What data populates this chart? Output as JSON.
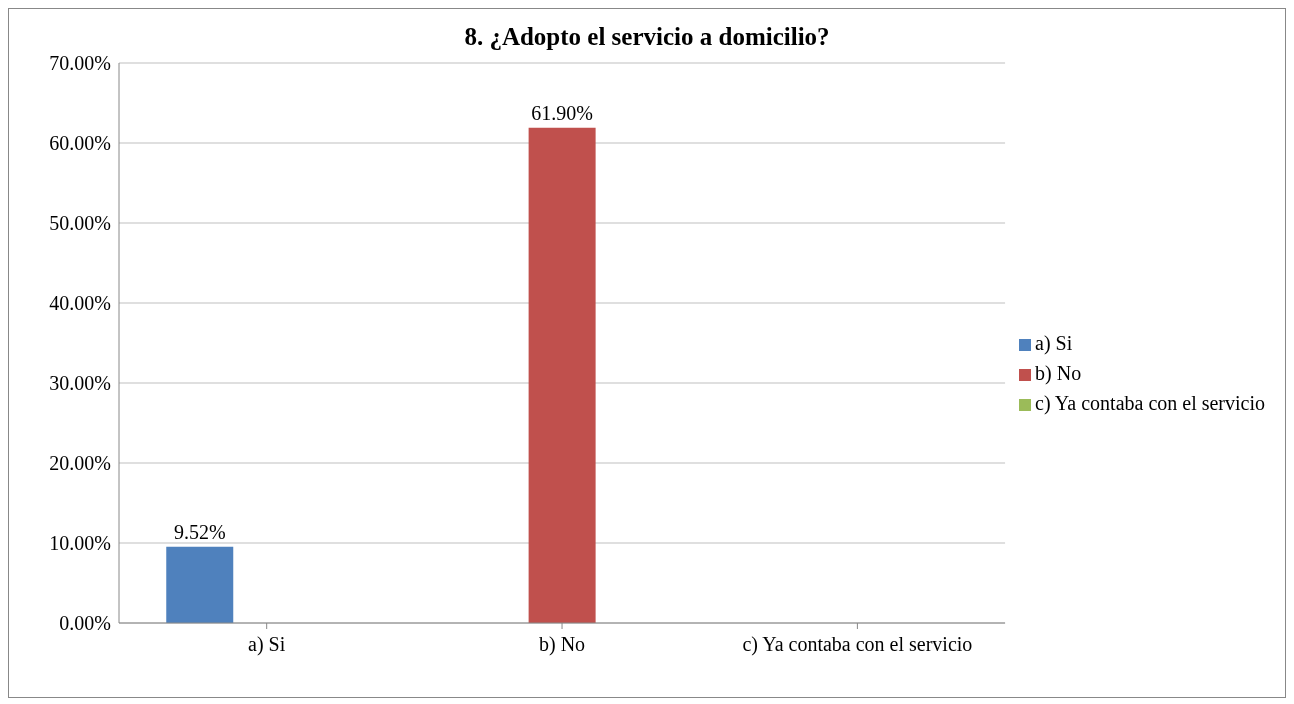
{
  "chart_data": {
    "type": "bar",
    "title": "8. ¿Adopto el servicio a domicilio?",
    "categories": [
      "a) Si",
      "b) No",
      "c) Ya contaba con el servicio"
    ],
    "series": [
      {
        "name": "a) Si",
        "color": "#4f81bd",
        "values": [
          9.52,
          null,
          null
        ],
        "value_labels": [
          "9.52%",
          null,
          null
        ]
      },
      {
        "name": "b) No",
        "color": "#c0504d",
        "values": [
          null,
          61.9,
          null
        ],
        "value_labels": [
          null,
          "61.90%",
          null
        ]
      },
      {
        "name": "c) Ya contaba con el servicio",
        "color": "#9bbb59",
        "values": [
          null,
          null,
          null
        ]
      }
    ],
    "ylim": [
      0,
      70
    ],
    "yticks": [
      {
        "value": 0,
        "label": "0.00%"
      },
      {
        "value": 10,
        "label": "10.00%"
      },
      {
        "value": 20,
        "label": "20.00%"
      },
      {
        "value": 30,
        "label": "30.00%"
      },
      {
        "value": 40,
        "label": "40.00%"
      },
      {
        "value": 50,
        "label": "50.00%"
      },
      {
        "value": 60,
        "label": "60.00%"
      },
      {
        "value": 70,
        "label": "70.00%"
      }
    ],
    "grid": "y",
    "legend": "right"
  }
}
